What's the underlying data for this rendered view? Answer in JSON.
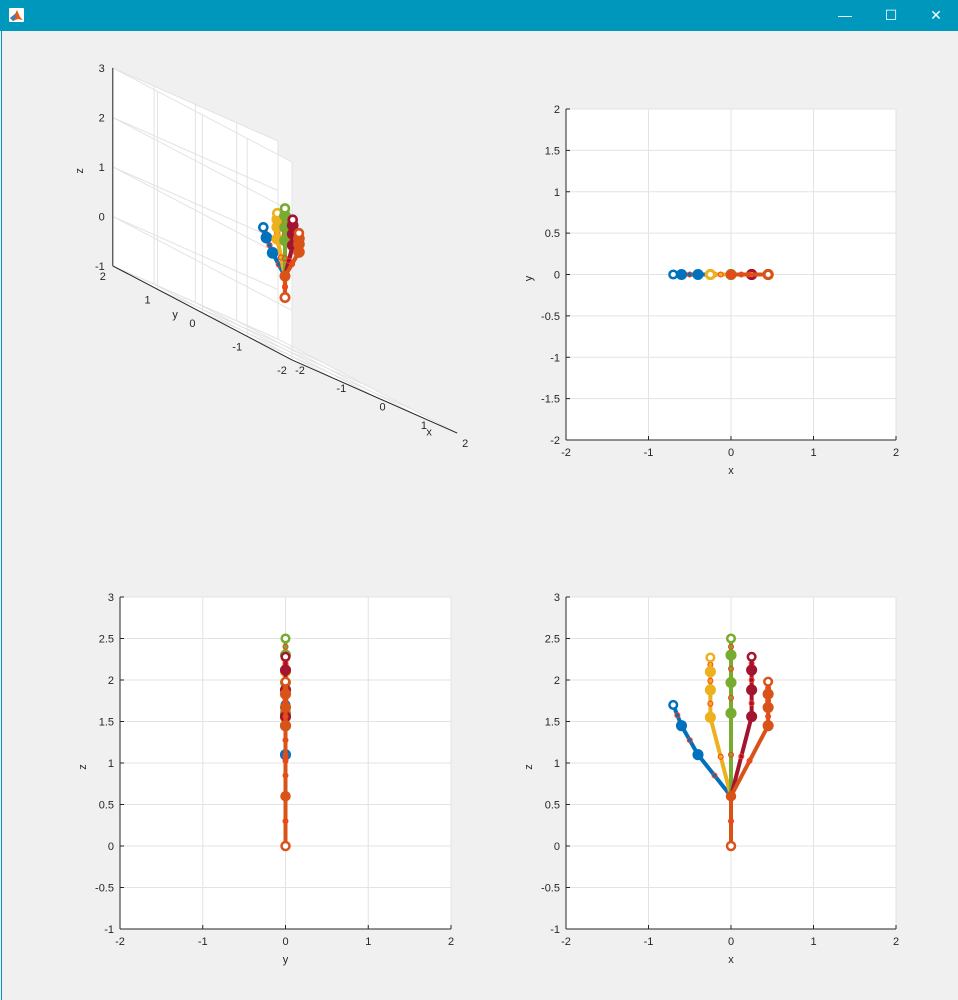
{
  "window": {
    "title": "",
    "buttons": {
      "minimize": "—",
      "maximize": "☐",
      "close": "✕"
    }
  },
  "colors": {
    "titlebar": "#0097bd",
    "thumb": "#0072bd",
    "index": "#edb120",
    "middle": "#77ac30",
    "ring": "#a2142f",
    "pinky": "#d95319",
    "marker": "#ff3b1a"
  },
  "chart_data": [
    {
      "type": "line",
      "view": "3d",
      "xlabel": "x",
      "ylabel": "y",
      "zlabel": "z",
      "xlim": [
        -2,
        2
      ],
      "ylim": [
        -2,
        2
      ],
      "zlim": [
        -1,
        3
      ],
      "xticks": [
        "-2",
        "-1",
        "0",
        "1",
        "2"
      ],
      "yticks": [
        "-2",
        "-1",
        "0",
        "1",
        "2"
      ],
      "zticks": [
        "-1",
        "0",
        "1",
        "2",
        "3"
      ],
      "grid": true
    },
    {
      "type": "line",
      "view": "xy",
      "xlabel": "x",
      "ylabel": "y",
      "xlim": [
        -2,
        2
      ],
      "ylim": [
        -2,
        2
      ],
      "xticks": [
        "-2",
        "-1",
        "0",
        "1",
        "2"
      ],
      "yticks": [
        "-2",
        "-1.5",
        "-1",
        "-0.5",
        "0",
        "0.5",
        "1",
        "1.5",
        "2"
      ],
      "grid": true
    },
    {
      "type": "line",
      "view": "yz",
      "xlabel": "y",
      "ylabel": "z",
      "xlim": [
        -2,
        2
      ],
      "ylim": [
        -1,
        3
      ],
      "xticks": [
        "-2",
        "-1",
        "0",
        "1",
        "2"
      ],
      "yticks": [
        "-1",
        "-0.5",
        "0",
        "0.5",
        "1",
        "1.5",
        "2",
        "2.5",
        "3"
      ],
      "grid": true
    },
    {
      "type": "line",
      "view": "xz",
      "xlabel": "x",
      "ylabel": "z",
      "xlim": [
        -2,
        2
      ],
      "ylim": [
        -1,
        3
      ],
      "xticks": [
        "-2",
        "-1",
        "0",
        "1",
        "2"
      ],
      "yticks": [
        "-1",
        "-0.5",
        "0",
        "0.5",
        "1",
        "1.5",
        "2",
        "2.5",
        "3"
      ],
      "grid": true
    }
  ],
  "hand_model": {
    "wrist": [
      0,
      0,
      0
    ],
    "palm": [
      0,
      0,
      0.6
    ],
    "fingers": [
      {
        "color_key": "thumb",
        "joints": [
          [
            -0.4,
            0,
            1.1
          ],
          [
            -0.6,
            0,
            1.45
          ],
          [
            -0.7,
            0,
            1.7
          ]
        ]
      },
      {
        "color_key": "index",
        "joints": [
          [
            -0.25,
            0,
            1.55
          ],
          [
            -0.25,
            0,
            1.88
          ],
          [
            -0.25,
            0,
            2.1
          ],
          [
            -0.25,
            0,
            2.27
          ]
        ]
      },
      {
        "color_key": "middle",
        "joints": [
          [
            0,
            0,
            1.6
          ],
          [
            0,
            0,
            1.97
          ],
          [
            0,
            0,
            2.3
          ],
          [
            0,
            0,
            2.5
          ]
        ]
      },
      {
        "color_key": "ring",
        "joints": [
          [
            0.25,
            0,
            1.56
          ],
          [
            0.25,
            0,
            1.88
          ],
          [
            0.25,
            0,
            2.12
          ],
          [
            0.25,
            0,
            2.28
          ]
        ]
      },
      {
        "color_key": "pinky",
        "joints": [
          [
            0.45,
            0,
            1.45
          ],
          [
            0.45,
            0,
            1.67
          ],
          [
            0.45,
            0,
            1.83
          ],
          [
            0.45,
            0,
            1.98
          ]
        ]
      }
    ]
  }
}
